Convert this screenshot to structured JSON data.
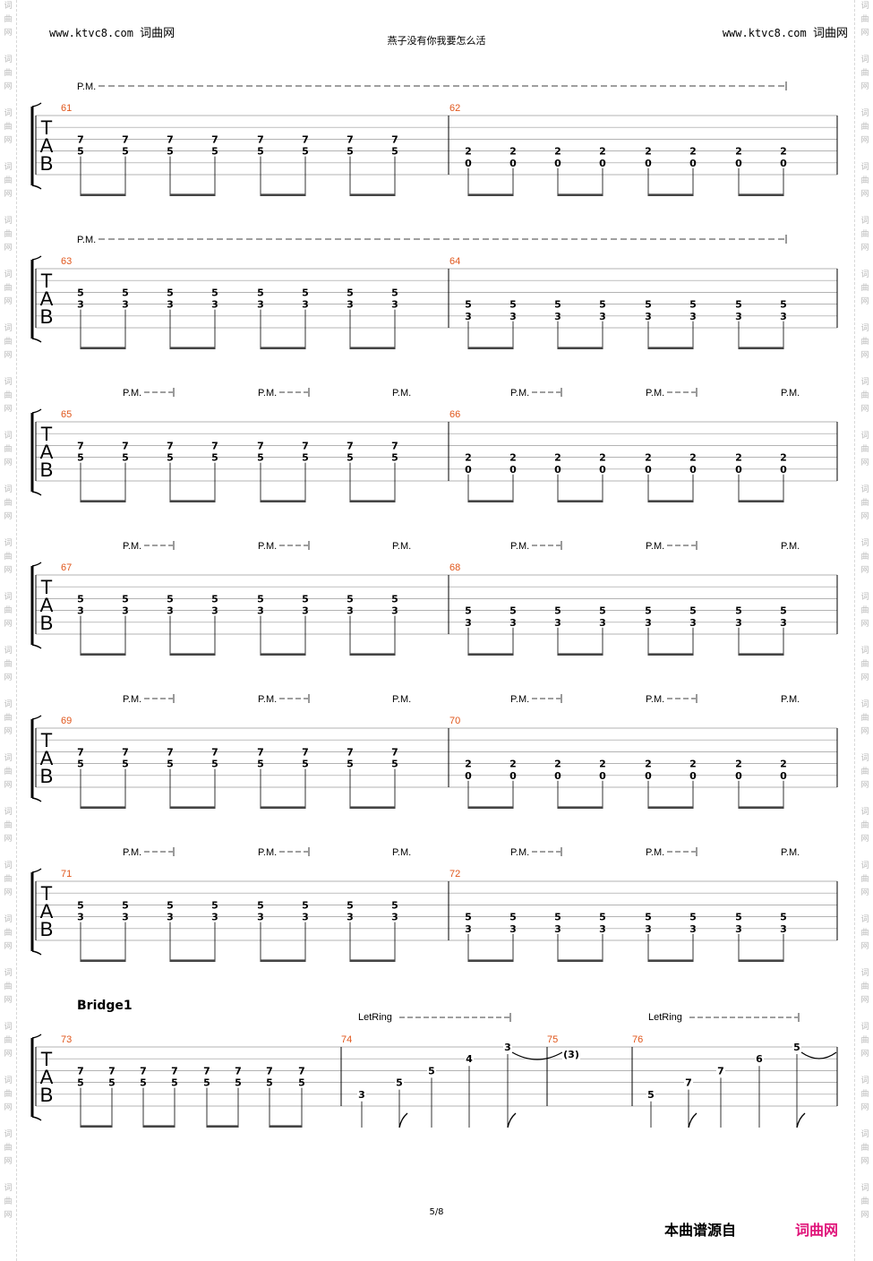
{
  "header": {
    "left_url": "www.ktvc8.com",
    "left_site": "词曲网",
    "right_url": "www.ktvc8.com",
    "right_site": "词曲网",
    "title": "燕子没有你我要怎么活"
  },
  "watermark": [
    "词",
    "曲",
    "网"
  ],
  "tab_clef": [
    "T",
    "A",
    "B"
  ],
  "labels": {
    "pm": "P.M.",
    "let_ring": "LetRing",
    "section": "Bridge1"
  },
  "systems": [
    {
      "pm_style": "long",
      "left_measure": "61",
      "right_measure": "62",
      "left_chord": [
        "7",
        "5"
      ],
      "right_chord": [
        "2",
        "0"
      ],
      "right_offset": "low"
    },
    {
      "pm_style": "long",
      "left_measure": "63",
      "right_measure": "64",
      "left_chord": [
        "5",
        "3"
      ],
      "right_chord": [
        "5",
        "3"
      ],
      "right_offset": "low"
    },
    {
      "pm_style": "short",
      "left_measure": "65",
      "right_measure": "66",
      "left_chord": [
        "7",
        "5"
      ],
      "right_chord": [
        "2",
        "0"
      ],
      "right_offset": "low"
    },
    {
      "pm_style": "short",
      "left_measure": "67",
      "right_measure": "68",
      "left_chord": [
        "5",
        "3"
      ],
      "right_chord": [
        "5",
        "3"
      ],
      "right_offset": "low"
    },
    {
      "pm_style": "short",
      "left_measure": "69",
      "right_measure": "70",
      "left_chord": [
        "7",
        "5"
      ],
      "right_chord": [
        "2",
        "0"
      ],
      "right_offset": "low"
    },
    {
      "pm_style": "short",
      "left_measure": "71",
      "right_measure": "72",
      "left_chord": [
        "5",
        "3"
      ],
      "right_chord": [
        "5",
        "3"
      ],
      "right_offset": "low"
    }
  ],
  "bridge": {
    "measures": [
      "73",
      "74",
      "75",
      "76"
    ],
    "m73_chord": [
      "7",
      "5"
    ],
    "m74_notes": [
      {
        "fret": "3",
        "string": 5
      },
      {
        "fret": "5",
        "string": 4
      },
      {
        "fret": "5",
        "string": 3
      },
      {
        "fret": "4",
        "string": 2
      },
      {
        "fret": "3",
        "string": 1
      }
    ],
    "m75_tied": "(3)",
    "m76_notes": [
      {
        "fret": "5",
        "string": 5
      },
      {
        "fret": "7",
        "string": 4
      },
      {
        "fret": "7",
        "string": 3
      },
      {
        "fret": "6",
        "string": 2
      },
      {
        "fret": "5",
        "string": 1
      }
    ]
  },
  "footer": {
    "page": "5/8",
    "source_label": "本曲谱源自",
    "source_brand": "词曲网"
  }
}
